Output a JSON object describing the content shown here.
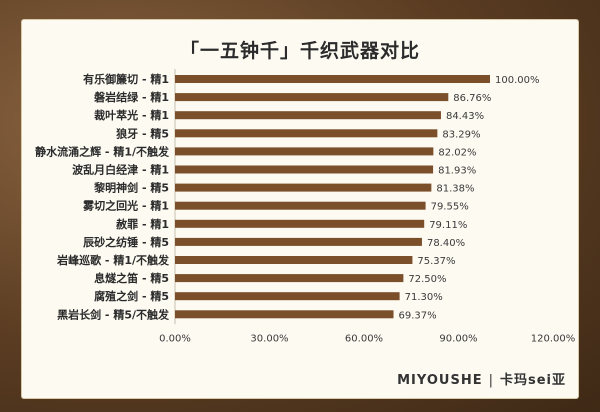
{
  "colors": {
    "bar": "#7a4f2a",
    "panel": "#fdfaf2",
    "axis_line": "#c8c0b0"
  },
  "footer": {
    "brand": "MIYOUSHE",
    "separator": "|",
    "author": "卡玛sei亚"
  },
  "chart_data": {
    "type": "bar",
    "orientation": "horizontal",
    "title": "「一五钟千」千织武器对比",
    "categories": [
      "有乐御簾切 - 精1",
      "磐岩结绿 - 精1",
      "裁叶萃光 - 精1",
      "狼牙 - 精5",
      "静水流涌之辉 - 精1/不触发",
      "波乱月白经津 - 精1",
      "黎明神剑 - 精5",
      "雾切之回光 - 精1",
      "赦罪 - 精1",
      "辰砂之纺锤 - 精5",
      "岩峰巡歌 - 精1/不触发",
      "息燧之笛 - 精5",
      "腐殖之剑 - 精5",
      "黑岩长剑 - 精5/不触发"
    ],
    "values": [
      100.0,
      86.76,
      84.43,
      83.29,
      82.02,
      81.93,
      81.38,
      79.55,
      79.11,
      78.4,
      75.37,
      72.5,
      71.3,
      69.37
    ],
    "value_labels": [
      "100.00%",
      "86.76%",
      "84.43%",
      "83.29%",
      "82.02%",
      "81.93%",
      "81.38%",
      "79.55%",
      "79.11%",
      "78.40%",
      "75.37%",
      "72.50%",
      "71.30%",
      "69.37%"
    ],
    "xlim": [
      0,
      120
    ],
    "x_ticks": [
      0,
      30,
      60,
      90,
      120
    ],
    "x_tick_labels": [
      "0.00%",
      "30.00%",
      "60.00%",
      "90.00%",
      "120.00%"
    ],
    "grid": false,
    "legend": "none"
  }
}
